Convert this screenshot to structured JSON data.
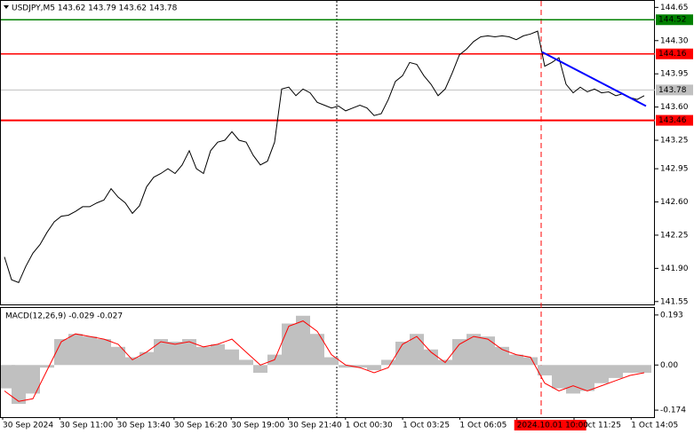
{
  "chart_data": [
    {
      "type": "line",
      "title": "USDJPY,M5  143.62 143.79 143.62 143.78",
      "color": "#000000",
      "values": [
        142.02,
        141.78,
        141.75,
        141.92,
        142.06,
        142.15,
        142.28,
        142.39,
        142.45,
        142.46,
        142.5,
        142.55,
        142.55,
        142.59,
        142.62,
        142.74,
        142.65,
        142.59,
        142.48,
        142.56,
        142.76,
        142.86,
        142.9,
        142.95,
        142.9,
        142.99,
        143.14,
        142.95,
        142.9,
        143.14,
        143.23,
        143.25,
        143.34,
        143.25,
        143.23,
        143.09,
        142.99,
        143.03,
        143.23,
        143.79,
        143.81,
        143.72,
        143.79,
        143.75,
        143.65,
        143.62,
        143.59,
        143.61,
        143.56,
        143.59,
        143.62,
        143.59,
        143.51,
        143.53,
        143.68,
        143.87,
        143.93,
        144.07,
        144.05,
        143.93,
        143.84,
        143.72,
        143.79,
        143.96,
        144.15,
        144.21,
        144.29,
        144.34,
        144.35,
        144.34,
        144.35,
        144.34,
        144.31,
        144.35,
        144.37,
        144.4,
        144.03,
        144.07,
        144.12,
        143.84,
        143.75,
        143.81,
        143.76,
        143.79,
        143.75,
        143.76,
        143.72,
        143.74,
        143.7,
        143.68,
        143.72
      ],
      "ylim": [
        141.52,
        144.7
      ],
      "yticks": [
        144.65,
        {
          "value": 144.3,
          "label": "144.30"
        },
        143.95,
        {
          "value": 143.6,
          "label": "143.60"
        },
        143.25,
        142.95,
        {
          "value": 142.6,
          "label": "142.60"
        },
        142.25,
        {
          "value": 141.9,
          "label": "141.90"
        },
        141.55
      ],
      "levels": [
        {
          "value": 144.52,
          "color": "#008000"
        },
        {
          "value": 144.16,
          "color": "#ff0000"
        },
        {
          "value": 143.46,
          "color": "#ff0000"
        }
      ],
      "current_price": 143.78,
      "trendline": {
        "start": 144.18,
        "end": 143.61,
        "color": "#0000ff"
      }
    },
    {
      "type": "macd",
      "title": "MACD(12,26,9) -0.029 -0.027",
      "series": [
        {
          "color": "#c0c0c0",
          "values": [
            -0.09,
            -0.15,
            -0.11,
            -0.01,
            0.1,
            0.12,
            0.11,
            0.1,
            0.07,
            0.03,
            0.05,
            0.1,
            0.09,
            0.1,
            0.07,
            0.08,
            0.06,
            0.02,
            -0.03,
            0.04,
            0.16,
            0.19,
            0.12,
            0.03,
            -0.01,
            -0.01,
            -0.02,
            0.02,
            0.09,
            0.12,
            0.06,
            0.02,
            0.1,
            0.12,
            0.11,
            0.07,
            0.04,
            0.03,
            -0.04,
            -0.09,
            -0.11,
            -0.1,
            -0.07,
            -0.05,
            -0.03,
            -0.03
          ]
        },
        {
          "color": "#ff0000",
          "values": [
            -0.1,
            -0.14,
            -0.13,
            -0.02,
            0.09,
            0.12,
            0.11,
            0.1,
            0.08,
            0.02,
            0.05,
            0.09,
            0.08,
            0.09,
            0.07,
            0.08,
            0.1,
            0.05,
            0.0,
            0.02,
            0.15,
            0.17,
            0.13,
            0.04,
            0.0,
            -0.01,
            -0.03,
            -0.01,
            0.08,
            0.11,
            0.05,
            0.01,
            0.08,
            0.11,
            0.1,
            0.06,
            0.04,
            0.03,
            -0.07,
            -0.1,
            -0.08,
            -0.1,
            -0.08,
            -0.06,
            -0.04,
            -0.03
          ]
        }
      ],
      "ylim": [
        -0.201,
        0.22
      ],
      "yticks": [
        0.193,
        {
          "value": 0,
          "label": "0.00"
        },
        -0.174
      ],
      "x_labels": [
        "30 Sep 2024",
        "30 Sep 11:00",
        "30 Sep 13:40",
        "30 Sep 16:20",
        "30 Sep 19:00",
        "30 Sep 21:40",
        "1 Oct 00:30",
        "1 Oct 03:25",
        "1 Oct 06:05",
        "2024.10.01 10:00",
        "1 Oct 11:25",
        "1 Oct 14:05"
      ]
    }
  ]
}
